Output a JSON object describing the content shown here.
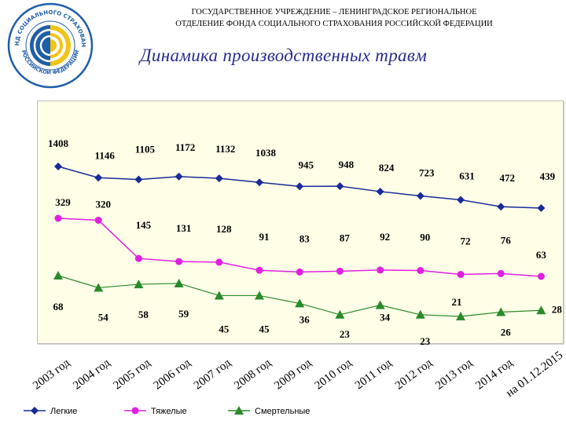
{
  "header": {
    "line1": "ГОСУДАРСТВЕННОЕ УЧРЕЖДЕНИЕ – ЛЕНИНГРАДСКОЕ РЕГИОНАЛЬНОЕ",
    "line2": "ОТДЕЛЕНИЕ ФОНДА СОЦИАЛЬНОГО СТРАХОВАНИЯ РОССИЙСКОЙ ФЕДЕРАЦИИ"
  },
  "logo": {
    "text_top": "ФОНД СОЦИАЛЬНОГО СТРАХОВАНИЯ",
    "text_bottom": "РОССИЙСКОЙ ФЕДЕРАЦИИ"
  },
  "colors": {
    "logo_blue": "#1f5fa8",
    "logo_yellow": "#f0c419",
    "title": "#2a2a8f",
    "series_light": "#1a2a9a",
    "series_heavy": "#e020e0",
    "series_fatal": "#2a8a2a"
  },
  "chart_data": {
    "type": "line",
    "title": "Динамика производственных травм",
    "categories": [
      "2003 год",
      "2004 год",
      "2005 год",
      "2006 год",
      "2007 год",
      "2008 год",
      "2009 год",
      "2010 год",
      "2011 год",
      "2012 год",
      "2013 год",
      "2014 год",
      "на 01.12.2015"
    ],
    "grid": false,
    "legend": "bottom-left",
    "series": [
      {
        "name": "Легкие",
        "marker": "diamond",
        "values": [
          1408,
          1146,
          1105,
          1172,
          1132,
          1038,
          945,
          948,
          824,
          723,
          631,
          472,
          439
        ]
      },
      {
        "name": "Тяжелые",
        "marker": "circle",
        "values": [
          329,
          320,
          145,
          131,
          128,
          91,
          83,
          87,
          92,
          90,
          72,
          76,
          63
        ]
      },
      {
        "name": "Смертельные",
        "marker": "triangle",
        "values": [
          68,
          54,
          58,
          59,
          45,
          45,
          36,
          23,
          34,
          23,
          21,
          26,
          28
        ]
      }
    ]
  }
}
